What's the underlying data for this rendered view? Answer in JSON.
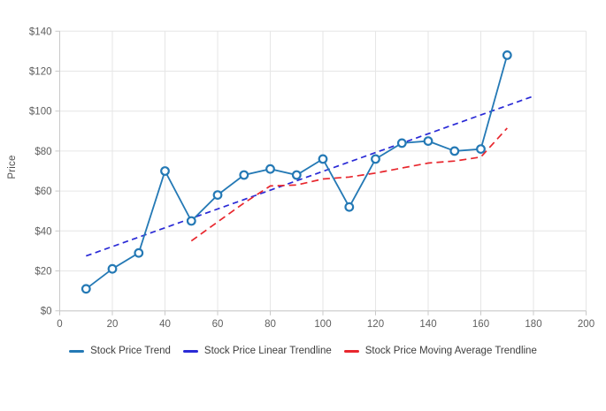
{
  "page": {
    "background": "#ffffff"
  },
  "chart_data": {
    "type": "line",
    "title": "",
    "xlabel": "",
    "ylabel": "Price",
    "xlim": [
      0,
      200
    ],
    "ylim": [
      0,
      140
    ],
    "x_ticks": [
      0,
      20,
      40,
      60,
      80,
      100,
      120,
      140,
      160,
      180,
      200
    ],
    "x_tick_labels": [
      "0",
      "20",
      "40",
      "60",
      "80",
      "100",
      "120",
      "140",
      "160",
      "180",
      "200"
    ],
    "y_ticks": [
      0,
      20,
      40,
      60,
      80,
      100,
      120,
      140
    ],
    "y_tick_labels": [
      "$0",
      "$20",
      "$40",
      "$60",
      "$80",
      "$100",
      "$120",
      "$140"
    ],
    "grid": true,
    "legend_position": "bottom",
    "colors": {
      "grid": "#e6e6e6",
      "axis": "#c9c9c9",
      "tick_text": "#5f5f5f"
    },
    "series": [
      {
        "name": "Stock Price Trend",
        "style": "solid-with-markers",
        "color": "#2479b5",
        "dash": null,
        "x": [
          10,
          20,
          30,
          40,
          50,
          60,
          70,
          80,
          90,
          100,
          110,
          120,
          130,
          140,
          150,
          160,
          170
        ],
        "y": [
          11,
          21,
          29,
          70,
          45,
          58,
          68,
          71,
          68,
          76,
          52,
          76,
          84,
          85,
          80,
          81,
          128
        ]
      },
      {
        "name": "Stock Price Linear Trendline",
        "style": "dashed",
        "color": "#2a2ad6",
        "dash": "6.5 4.5",
        "x": [
          10,
          180
        ],
        "y": [
          27.5,
          107.5
        ]
      },
      {
        "name": "Stock Price Moving Average Trendline",
        "style": "dashed",
        "color": "#e8262d",
        "dash": "8 5",
        "x": [
          50,
          60,
          70,
          80,
          90,
          100,
          110,
          120,
          130,
          140,
          150,
          160,
          170
        ],
        "y": [
          35,
          44.5,
          54,
          62.5,
          63,
          66,
          67,
          69,
          71.5,
          74,
          75,
          77,
          91.5
        ]
      }
    ]
  }
}
